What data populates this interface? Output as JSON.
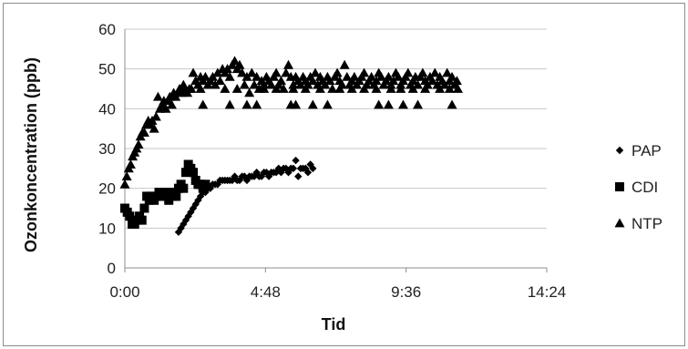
{
  "chart_data": {
    "type": "scatter",
    "title": "",
    "xlabel": "Tid",
    "ylabel": "Ozonkoncentration (ppb)",
    "xlim_minutes": [
      0,
      864
    ],
    "ylim": [
      0,
      60
    ],
    "x_ticks": [
      {
        "label": "0:00",
        "minutes": 0
      },
      {
        "label": "4:48",
        "minutes": 288
      },
      {
        "label": "9:36",
        "minutes": 576
      },
      {
        "label": "14:24",
        "minutes": 864
      }
    ],
    "y_ticks": [
      0,
      10,
      20,
      30,
      40,
      50,
      60
    ],
    "grid": "horizontal",
    "legend_position": "right",
    "series": [
      {
        "name": "PAP",
        "marker": "diamond",
        "points": [
          {
            "x": 110,
            "y": 9
          },
          {
            "x": 115,
            "y": 10
          },
          {
            "x": 120,
            "y": 11
          },
          {
            "x": 125,
            "y": 12
          },
          {
            "x": 130,
            "y": 13
          },
          {
            "x": 135,
            "y": 14
          },
          {
            "x": 140,
            "y": 15
          },
          {
            "x": 145,
            "y": 16
          },
          {
            "x": 150,
            "y": 17
          },
          {
            "x": 155,
            "y": 18
          },
          {
            "x": 160,
            "y": 19
          },
          {
            "x": 165,
            "y": 19
          },
          {
            "x": 170,
            "y": 20
          },
          {
            "x": 175,
            "y": 20
          },
          {
            "x": 180,
            "y": 21
          },
          {
            "x": 185,
            "y": 21
          },
          {
            "x": 190,
            "y": 21
          },
          {
            "x": 195,
            "y": 22
          },
          {
            "x": 200,
            "y": 22
          },
          {
            "x": 205,
            "y": 22
          },
          {
            "x": 210,
            "y": 22
          },
          {
            "x": 215,
            "y": 22
          },
          {
            "x": 220,
            "y": 22
          },
          {
            "x": 225,
            "y": 23
          },
          {
            "x": 230,
            "y": 22
          },
          {
            "x": 235,
            "y": 22
          },
          {
            "x": 240,
            "y": 23
          },
          {
            "x": 245,
            "y": 23
          },
          {
            "x": 250,
            "y": 22
          },
          {
            "x": 255,
            "y": 23
          },
          {
            "x": 260,
            "y": 23
          },
          {
            "x": 265,
            "y": 23
          },
          {
            "x": 270,
            "y": 24
          },
          {
            "x": 275,
            "y": 23
          },
          {
            "x": 280,
            "y": 23
          },
          {
            "x": 285,
            "y": 24
          },
          {
            "x": 290,
            "y": 24
          },
          {
            "x": 295,
            "y": 23
          },
          {
            "x": 300,
            "y": 24
          },
          {
            "x": 305,
            "y": 24
          },
          {
            "x": 310,
            "y": 24
          },
          {
            "x": 315,
            "y": 25
          },
          {
            "x": 320,
            "y": 24
          },
          {
            "x": 325,
            "y": 25
          },
          {
            "x": 330,
            "y": 25
          },
          {
            "x": 335,
            "y": 24
          },
          {
            "x": 340,
            "y": 25
          },
          {
            "x": 345,
            "y": 25
          },
          {
            "x": 350,
            "y": 27
          },
          {
            "x": 355,
            "y": 23
          },
          {
            "x": 360,
            "y": 25
          },
          {
            "x": 365,
            "y": 25
          },
          {
            "x": 370,
            "y": 25
          },
          {
            "x": 375,
            "y": 24
          },
          {
            "x": 380,
            "y": 26
          },
          {
            "x": 385,
            "y": 25
          }
        ]
      },
      {
        "name": "CDI",
        "marker": "square",
        "points": [
          {
            "x": 0,
            "y": 15
          },
          {
            "x": 5,
            "y": 14
          },
          {
            "x": 10,
            "y": 13
          },
          {
            "x": 15,
            "y": 11
          },
          {
            "x": 20,
            "y": 11
          },
          {
            "x": 25,
            "y": 12
          },
          {
            "x": 30,
            "y": 13
          },
          {
            "x": 35,
            "y": 12
          },
          {
            "x": 40,
            "y": 15
          },
          {
            "x": 45,
            "y": 18
          },
          {
            "x": 50,
            "y": 17
          },
          {
            "x": 55,
            "y": 18
          },
          {
            "x": 60,
            "y": 17
          },
          {
            "x": 65,
            "y": 18
          },
          {
            "x": 70,
            "y": 19
          },
          {
            "x": 75,
            "y": 18
          },
          {
            "x": 80,
            "y": 19
          },
          {
            "x": 85,
            "y": 18
          },
          {
            "x": 90,
            "y": 17
          },
          {
            "x": 95,
            "y": 19
          },
          {
            "x": 100,
            "y": 18
          },
          {
            "x": 105,
            "y": 18
          },
          {
            "x": 110,
            "y": 20
          },
          {
            "x": 115,
            "y": 21
          },
          {
            "x": 120,
            "y": 20
          },
          {
            "x": 125,
            "y": 24
          },
          {
            "x": 130,
            "y": 26
          },
          {
            "x": 135,
            "y": 25
          },
          {
            "x": 140,
            "y": 24
          },
          {
            "x": 145,
            "y": 22
          },
          {
            "x": 150,
            "y": 21
          },
          {
            "x": 155,
            "y": 21
          },
          {
            "x": 160,
            "y": 20
          },
          {
            "x": 165,
            "y": 21
          }
        ]
      },
      {
        "name": "NTP",
        "marker": "triangle",
        "points": [
          {
            "x": 0,
            "y": 21
          },
          {
            "x": 4,
            "y": 23
          },
          {
            "x": 8,
            "y": 25
          },
          {
            "x": 12,
            "y": 26
          },
          {
            "x": 16,
            "y": 28
          },
          {
            "x": 20,
            "y": 29
          },
          {
            "x": 24,
            "y": 30
          },
          {
            "x": 28,
            "y": 31
          },
          {
            "x": 32,
            "y": 33
          },
          {
            "x": 36,
            "y": 34
          },
          {
            "x": 40,
            "y": 34
          },
          {
            "x": 44,
            "y": 36
          },
          {
            "x": 48,
            "y": 37
          },
          {
            "x": 52,
            "y": 36
          },
          {
            "x": 56,
            "y": 37
          },
          {
            "x": 60,
            "y": 35
          },
          {
            "x": 64,
            "y": 38
          },
          {
            "x": 68,
            "y": 43
          },
          {
            "x": 72,
            "y": 40
          },
          {
            "x": 76,
            "y": 41
          },
          {
            "x": 80,
            "y": 42
          },
          {
            "x": 84,
            "y": 40
          },
          {
            "x": 88,
            "y": 42
          },
          {
            "x": 92,
            "y": 43
          },
          {
            "x": 96,
            "y": 41
          },
          {
            "x": 100,
            "y": 44
          },
          {
            "x": 104,
            "y": 43
          },
          {
            "x": 108,
            "y": 44
          },
          {
            "x": 112,
            "y": 45
          },
          {
            "x": 116,
            "y": 44
          },
          {
            "x": 120,
            "y": 46
          },
          {
            "x": 124,
            "y": 45
          },
          {
            "x": 128,
            "y": 44
          },
          {
            "x": 132,
            "y": 45
          },
          {
            "x": 136,
            "y": 45
          },
          {
            "x": 140,
            "y": 49
          },
          {
            "x": 145,
            "y": 47
          },
          {
            "x": 150,
            "y": 46
          },
          {
            "x": 155,
            "y": 48
          },
          {
            "x": 160,
            "y": 47
          },
          {
            "x": 165,
            "y": 48
          },
          {
            "x": 170,
            "y": 46
          },
          {
            "x": 175,
            "y": 47
          },
          {
            "x": 180,
            "y": 48
          },
          {
            "x": 185,
            "y": 46
          },
          {
            "x": 190,
            "y": 49
          },
          {
            "x": 195,
            "y": 47
          },
          {
            "x": 200,
            "y": 50
          },
          {
            "x": 205,
            "y": 49
          },
          {
            "x": 210,
            "y": 50
          },
          {
            "x": 215,
            "y": 48
          },
          {
            "x": 220,
            "y": 51
          },
          {
            "x": 225,
            "y": 52
          },
          {
            "x": 230,
            "y": 50
          },
          {
            "x": 235,
            "y": 51
          },
          {
            "x": 240,
            "y": 49
          },
          {
            "x": 245,
            "y": 46
          },
          {
            "x": 250,
            "y": 48
          },
          {
            "x": 255,
            "y": 44
          },
          {
            "x": 260,
            "y": 49
          },
          {
            "x": 265,
            "y": 46
          },
          {
            "x": 270,
            "y": 48
          },
          {
            "x": 275,
            "y": 45
          },
          {
            "x": 280,
            "y": 47
          },
          {
            "x": 285,
            "y": 46
          },
          {
            "x": 290,
            "y": 48
          },
          {
            "x": 295,
            "y": 47
          },
          {
            "x": 300,
            "y": 46
          },
          {
            "x": 305,
            "y": 48
          },
          {
            "x": 310,
            "y": 49
          },
          {
            "x": 315,
            "y": 46
          },
          {
            "x": 320,
            "y": 47
          },
          {
            "x": 325,
            "y": 45
          },
          {
            "x": 330,
            "y": 49
          },
          {
            "x": 335,
            "y": 51
          },
          {
            "x": 340,
            "y": 48
          },
          {
            "x": 345,
            "y": 46
          },
          {
            "x": 350,
            "y": 48
          },
          {
            "x": 355,
            "y": 47
          },
          {
            "x": 360,
            "y": 46
          },
          {
            "x": 365,
            "y": 48
          },
          {
            "x": 370,
            "y": 47
          },
          {
            "x": 375,
            "y": 46
          },
          {
            "x": 380,
            "y": 48
          },
          {
            "x": 385,
            "y": 47
          },
          {
            "x": 390,
            "y": 49
          },
          {
            "x": 395,
            "y": 46
          },
          {
            "x": 400,
            "y": 48
          },
          {
            "x": 405,
            "y": 47
          },
          {
            "x": 410,
            "y": 46
          },
          {
            "x": 415,
            "y": 48
          },
          {
            "x": 420,
            "y": 47
          },
          {
            "x": 425,
            "y": 45
          },
          {
            "x": 430,
            "y": 48
          },
          {
            "x": 435,
            "y": 49
          },
          {
            "x": 440,
            "y": 47
          },
          {
            "x": 445,
            "y": 46
          },
          {
            "x": 450,
            "y": 51
          },
          {
            "x": 455,
            "y": 48
          },
          {
            "x": 460,
            "y": 46
          },
          {
            "x": 465,
            "y": 47
          },
          {
            "x": 470,
            "y": 48
          },
          {
            "x": 475,
            "y": 46
          },
          {
            "x": 480,
            "y": 47
          },
          {
            "x": 485,
            "y": 48
          },
          {
            "x": 490,
            "y": 49
          },
          {
            "x": 495,
            "y": 46
          },
          {
            "x": 500,
            "y": 47
          },
          {
            "x": 505,
            "y": 48
          },
          {
            "x": 510,
            "y": 46
          },
          {
            "x": 515,
            "y": 47
          },
          {
            "x": 520,
            "y": 49
          },
          {
            "x": 525,
            "y": 48
          },
          {
            "x": 530,
            "y": 46
          },
          {
            "x": 535,
            "y": 47
          },
          {
            "x": 540,
            "y": 48
          },
          {
            "x": 545,
            "y": 46
          },
          {
            "x": 550,
            "y": 47
          },
          {
            "x": 555,
            "y": 49
          },
          {
            "x": 560,
            "y": 48
          },
          {
            "x": 565,
            "y": 46
          },
          {
            "x": 570,
            "y": 47
          },
          {
            "x": 575,
            "y": 48
          },
          {
            "x": 580,
            "y": 49
          },
          {
            "x": 585,
            "y": 46
          },
          {
            "x": 590,
            "y": 47
          },
          {
            "x": 595,
            "y": 48
          },
          {
            "x": 600,
            "y": 46
          },
          {
            "x": 605,
            "y": 48
          },
          {
            "x": 610,
            "y": 49
          },
          {
            "x": 615,
            "y": 47
          },
          {
            "x": 620,
            "y": 46
          },
          {
            "x": 625,
            "y": 48
          },
          {
            "x": 630,
            "y": 47
          },
          {
            "x": 635,
            "y": 49
          },
          {
            "x": 640,
            "y": 46
          },
          {
            "x": 645,
            "y": 48
          },
          {
            "x": 650,
            "y": 47
          },
          {
            "x": 655,
            "y": 46
          },
          {
            "x": 660,
            "y": 49
          },
          {
            "x": 665,
            "y": 47
          },
          {
            "x": 670,
            "y": 48
          },
          {
            "x": 675,
            "y": 46
          },
          {
            "x": 680,
            "y": 47
          },
          {
            "x": 160,
            "y": 41
          },
          {
            "x": 215,
            "y": 41
          },
          {
            "x": 250,
            "y": 41
          },
          {
            "x": 270,
            "y": 41
          },
          {
            "x": 340,
            "y": 41
          },
          {
            "x": 350,
            "y": 41
          },
          {
            "x": 385,
            "y": 41
          },
          {
            "x": 415,
            "y": 41
          },
          {
            "x": 520,
            "y": 41
          },
          {
            "x": 540,
            "y": 41
          },
          {
            "x": 570,
            "y": 41
          },
          {
            "x": 600,
            "y": 41
          },
          {
            "x": 670,
            "y": 41
          },
          {
            "x": 155,
            "y": 45
          },
          {
            "x": 205,
            "y": 45
          },
          {
            "x": 230,
            "y": 45
          },
          {
            "x": 285,
            "y": 45
          },
          {
            "x": 310,
            "y": 45
          },
          {
            "x": 345,
            "y": 45
          },
          {
            "x": 370,
            "y": 45
          },
          {
            "x": 400,
            "y": 45
          },
          {
            "x": 440,
            "y": 45
          },
          {
            "x": 465,
            "y": 45
          },
          {
            "x": 490,
            "y": 45
          },
          {
            "x": 515,
            "y": 45
          },
          {
            "x": 545,
            "y": 45
          },
          {
            "x": 565,
            "y": 45
          },
          {
            "x": 590,
            "y": 45
          },
          {
            "x": 615,
            "y": 45
          },
          {
            "x": 645,
            "y": 45
          },
          {
            "x": 665,
            "y": 45
          },
          {
            "x": 682,
            "y": 45
          }
        ]
      }
    ]
  }
}
